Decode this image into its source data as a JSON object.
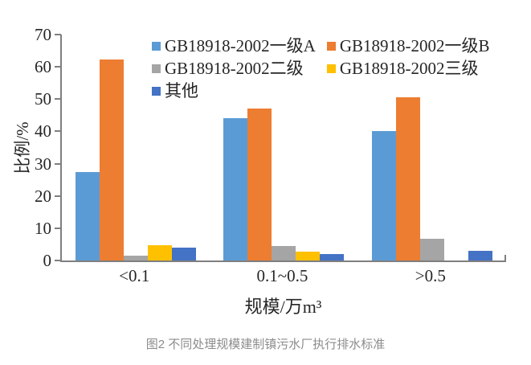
{
  "caption": "图2 不同处理规模建制镇污水厂执行排水标准",
  "chart_data": {
    "type": "bar",
    "title": "",
    "xlabel": "规模/万m³",
    "ylabel": "比例/%",
    "ylim": [
      0,
      70
    ],
    "yticks": [
      0,
      10,
      20,
      30,
      40,
      50,
      60,
      70
    ],
    "categories": [
      "<0.1",
      "0.1~0.5",
      ">0.5"
    ],
    "series": [
      {
        "name": "GB18918-2002一级A",
        "color": "#5B9BD5",
        "values": [
          27.5,
          44.0,
          40.0
        ]
      },
      {
        "name": "GB18918-2002一级B",
        "color": "#ED7D31",
        "values": [
          62.3,
          47.0,
          50.5
        ]
      },
      {
        "name": "GB18918-2002二级",
        "color": "#A5A5A5",
        "values": [
          1.5,
          4.5,
          6.8
        ]
      },
      {
        "name": "GB18918-2002三级",
        "color": "#FFC000",
        "values": [
          4.8,
          2.7,
          0
        ]
      },
      {
        "name": "其他",
        "color": "#4472C4",
        "values": [
          3.9,
          2.0,
          3.0
        ]
      }
    ],
    "legend_position": "top-inside",
    "grid": false,
    "axis_color": "#7f7f7f",
    "text_color": "#262626"
  }
}
